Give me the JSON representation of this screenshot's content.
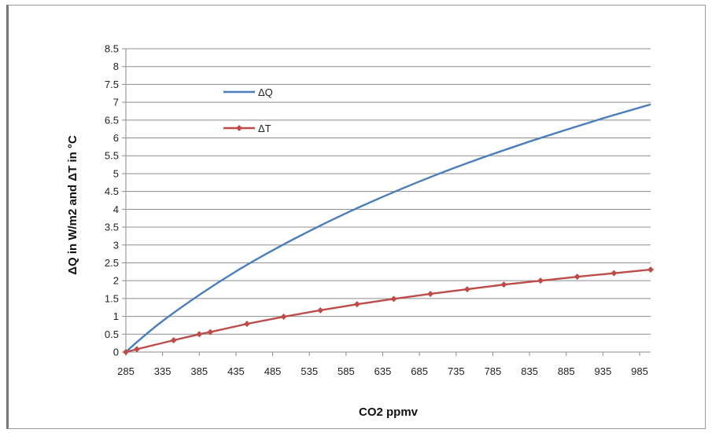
{
  "chart_data": {
    "type": "line",
    "title": "",
    "xlabel": "CO2 ppmv",
    "ylabel": "ΔQ in W/m2  and  ΔT in °C",
    "xlim": [
      285,
      1000
    ],
    "ylim": [
      0,
      8.5
    ],
    "x_ticks": [
      285,
      335,
      385,
      435,
      485,
      535,
      585,
      635,
      685,
      735,
      785,
      835,
      885,
      935,
      985
    ],
    "y_ticks": [
      "0",
      "0.5",
      "1",
      "1.5",
      "2",
      "2.5",
      "3",
      "3.5",
      "4",
      "4.5",
      "5",
      "5.5",
      "6",
      "6.5",
      "7",
      "7.5",
      "8",
      "8.5"
    ],
    "grid": "horizontal",
    "legend_position": "upper-left inside plot",
    "series": [
      {
        "name": "ΔQ",
        "color": "#4a7ebb",
        "marker": "none",
        "x": [
          285,
          300,
          335,
          385,
          435,
          485,
          535,
          585,
          635,
          685,
          735,
          785,
          835,
          885,
          935,
          985,
          1000
        ],
        "y": [
          0,
          0.28,
          0.87,
          1.6,
          2.26,
          2.85,
          3.39,
          3.89,
          4.35,
          4.78,
          5.18,
          5.55,
          5.9,
          6.23,
          6.55,
          6.85,
          6.94
        ]
      },
      {
        "name": "ΔT",
        "color": "#be4b48",
        "marker": "diamond",
        "x": [
          285,
          300,
          350,
          385,
          400,
          450,
          500,
          550,
          600,
          650,
          700,
          750,
          800,
          850,
          900,
          950,
          1000
        ],
        "y": [
          0,
          0.08,
          0.33,
          0.5,
          0.56,
          0.79,
          0.99,
          1.17,
          1.34,
          1.49,
          1.63,
          1.76,
          1.89,
          2.0,
          2.11,
          2.21,
          2.31
        ]
      }
    ]
  }
}
